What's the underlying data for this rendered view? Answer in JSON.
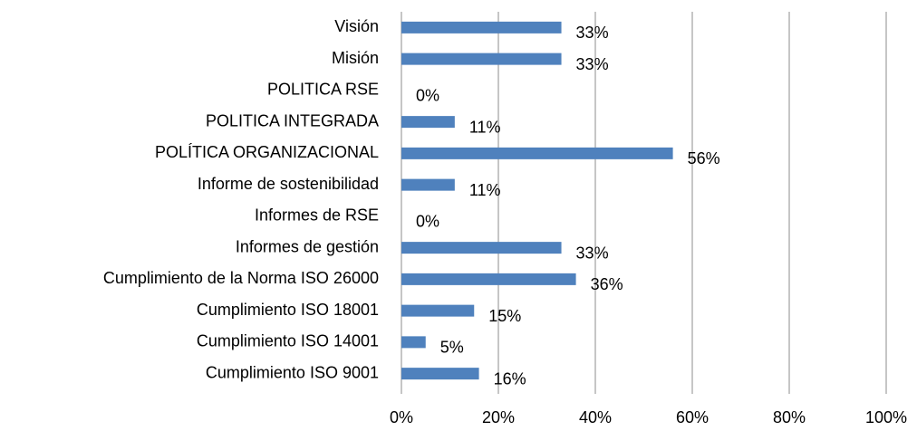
{
  "chart_data": {
    "type": "bar",
    "orientation": "horizontal",
    "categories": [
      "Visión",
      "Misión",
      "POLITICA RSE",
      "POLITICA INTEGRADA",
      "POLÍTICA ORGANIZACIONAL",
      "Informe de sostenibilidad",
      "Informes de RSE",
      "Informes de gestión",
      "Cumplimiento de la Norma ISO 26000",
      "Cumplimiento ISO 18001",
      "Cumplimiento ISO 14001",
      "Cumplimiento ISO 9001"
    ],
    "values": [
      33,
      33,
      0,
      11,
      56,
      11,
      0,
      33,
      36,
      15,
      5,
      16
    ],
    "value_labels": [
      "33%",
      "33%",
      "0%",
      "11%",
      "56%",
      "11%",
      "0%",
      "33%",
      "36%",
      "15%",
      "5%",
      "16%"
    ],
    "color": "#4f81bd",
    "xlim": [
      0,
      100
    ],
    "xticks": [
      {
        "value": 0,
        "label": "0%"
      },
      {
        "value": 20,
        "label": "20%"
      },
      {
        "value": 40,
        "label": "40%"
      },
      {
        "value": 60,
        "label": "60%"
      },
      {
        "value": 80,
        "label": "80%"
      },
      {
        "value": 100,
        "label": "100%"
      }
    ],
    "grid": true
  }
}
